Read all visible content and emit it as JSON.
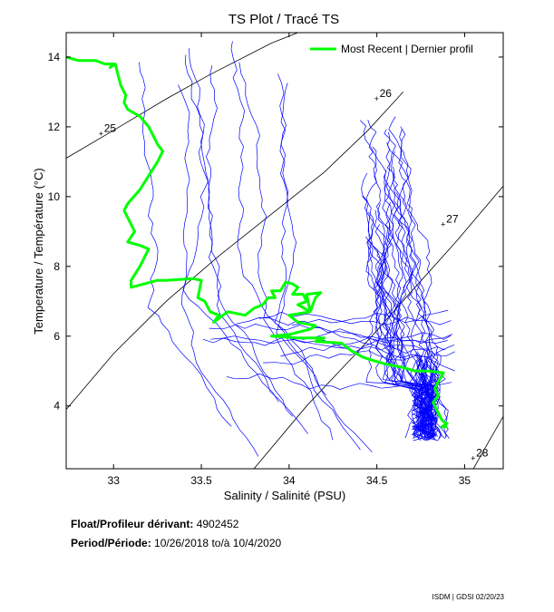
{
  "chart_data": {
    "type": "line",
    "title": "TS Plot / Tracé TS",
    "xlabel": "Salinity / Salinité (PSU)",
    "ylabel": "Temperature / Température (°C)",
    "xlim": [
      32.73,
      35.22
    ],
    "ylim": [
      2.2,
      14.7
    ],
    "xticks": [
      "33",
      "33.5",
      "34",
      "34.5",
      "35"
    ],
    "xtick_values": [
      33,
      33.5,
      34,
      34.5,
      35
    ],
    "yticks": [
      "4",
      "6",
      "8",
      "10",
      "12",
      "14"
    ],
    "ytick_values": [
      4,
      6,
      8,
      10,
      12,
      14
    ],
    "grid": false,
    "legend": {
      "placement": "top-right",
      "entries": [
        "Most Recent | Dernier profil"
      ]
    },
    "density_contours": [
      {
        "label": "25",
        "label_at": [
          32.93,
          11.8
        ],
        "points": [
          [
            32.73,
            11.1
          ],
          [
            33.0,
            11.9
          ],
          [
            33.3,
            12.8
          ],
          [
            33.55,
            13.5
          ],
          [
            33.9,
            14.4
          ],
          [
            34.05,
            14.7
          ]
        ]
      },
      {
        "label": "26",
        "label_at": [
          34.5,
          12.8
        ],
        "points": [
          [
            32.73,
            3.9
          ],
          [
            33.0,
            5.5
          ],
          [
            33.3,
            7.0
          ],
          [
            33.6,
            8.3
          ],
          [
            33.9,
            9.5
          ],
          [
            34.2,
            10.7
          ],
          [
            34.45,
            11.9
          ],
          [
            34.65,
            13.0
          ]
        ]
      },
      {
        "label": "27",
        "label_at": [
          34.88,
          9.2
        ],
        "points": [
          [
            33.8,
            2.2
          ],
          [
            34.1,
            4.0
          ],
          [
            34.4,
            5.6
          ],
          [
            34.7,
            7.3
          ],
          [
            34.95,
            8.7
          ],
          [
            35.22,
            10.3
          ]
        ]
      },
      {
        "label": "28",
        "label_at": [
          35.05,
          2.5
        ],
        "points": [
          [
            35.05,
            2.2
          ],
          [
            35.14,
            3.0
          ],
          [
            35.22,
            3.7
          ]
        ]
      }
    ],
    "series": [
      {
        "name": "Most Recent | Dernier profil",
        "color": "#00ff00",
        "points": [
          [
            32.73,
            14.0
          ],
          [
            32.8,
            13.9
          ],
          [
            32.9,
            13.9
          ],
          [
            32.95,
            13.8
          ],
          [
            33.0,
            13.8
          ],
          [
            32.98,
            13.7
          ],
          [
            33.01,
            13.8
          ],
          [
            33.02,
            13.6
          ],
          [
            33.04,
            13.2
          ],
          [
            33.07,
            12.9
          ],
          [
            33.06,
            12.7
          ],
          [
            33.08,
            12.5
          ],
          [
            33.15,
            12.3
          ],
          [
            33.2,
            12.0
          ],
          [
            33.22,
            11.8
          ],
          [
            33.25,
            11.5
          ],
          [
            33.28,
            11.3
          ],
          [
            33.25,
            11.0
          ],
          [
            33.2,
            10.6
          ],
          [
            33.15,
            10.2
          ],
          [
            33.08,
            9.8
          ],
          [
            33.06,
            9.6
          ],
          [
            33.12,
            9.0
          ],
          [
            33.08,
            8.7
          ],
          [
            33.15,
            8.6
          ],
          [
            33.2,
            8.5
          ],
          [
            33.15,
            8.0
          ],
          [
            33.1,
            7.6
          ],
          [
            33.1,
            7.4
          ],
          [
            33.25,
            7.6
          ],
          [
            33.3,
            7.6
          ],
          [
            33.45,
            7.65
          ],
          [
            33.5,
            7.6
          ],
          [
            33.48,
            7.1
          ],
          [
            33.52,
            7.0
          ],
          [
            33.55,
            6.7
          ],
          [
            33.6,
            6.6
          ],
          [
            33.57,
            6.4
          ],
          [
            33.65,
            6.7
          ],
          [
            33.75,
            6.6
          ],
          [
            33.8,
            6.8
          ],
          [
            33.85,
            6.9
          ],
          [
            33.88,
            7.1
          ],
          [
            33.92,
            7.1
          ],
          [
            33.9,
            7.3
          ],
          [
            33.95,
            7.3
          ],
          [
            33.98,
            7.55
          ],
          [
            34.02,
            7.5
          ],
          [
            34.05,
            7.4
          ],
          [
            34.02,
            7.2
          ],
          [
            34.08,
            7.2
          ],
          [
            34.1,
            7.0
          ],
          [
            34.05,
            6.9
          ],
          [
            34.12,
            6.7
          ],
          [
            34.1,
            7.2
          ],
          [
            34.18,
            7.25
          ],
          [
            34.15,
            7.1
          ],
          [
            34.12,
            6.7
          ],
          [
            34.0,
            6.6
          ],
          [
            34.05,
            6.4
          ],
          [
            34.15,
            6.3
          ],
          [
            34.12,
            6.2
          ],
          [
            34.0,
            6.05
          ],
          [
            33.9,
            6.0
          ],
          [
            34.05,
            5.95
          ],
          [
            34.2,
            5.95
          ],
          [
            34.15,
            5.85
          ],
          [
            34.3,
            5.8
          ],
          [
            34.35,
            5.6
          ],
          [
            34.42,
            5.4
          ],
          [
            34.48,
            5.3
          ],
          [
            34.55,
            5.2
          ],
          [
            34.65,
            5.1
          ],
          [
            34.72,
            5.0
          ],
          [
            34.8,
            5.0
          ],
          [
            34.88,
            4.95
          ],
          [
            34.85,
            4.7
          ],
          [
            34.83,
            4.5
          ],
          [
            34.85,
            4.3
          ],
          [
            34.82,
            4.1
          ],
          [
            34.84,
            3.9
          ],
          [
            34.86,
            3.7
          ],
          [
            34.87,
            3.6
          ],
          [
            34.88,
            3.55
          ],
          [
            34.9,
            3.5
          ],
          [
            34.87,
            3.4
          ],
          [
            34.9,
            3.4
          ]
        ]
      }
    ]
  },
  "footer": {
    "float_label": "Float/Profileur dérivant:",
    "float_value": "4902452",
    "period_label": "Period/Période:",
    "period_from": "10/26/2018",
    "period_to_label": "to/à",
    "period_to": "10/4/2020",
    "credit": "ISDM | GDSI 02/20/23"
  }
}
